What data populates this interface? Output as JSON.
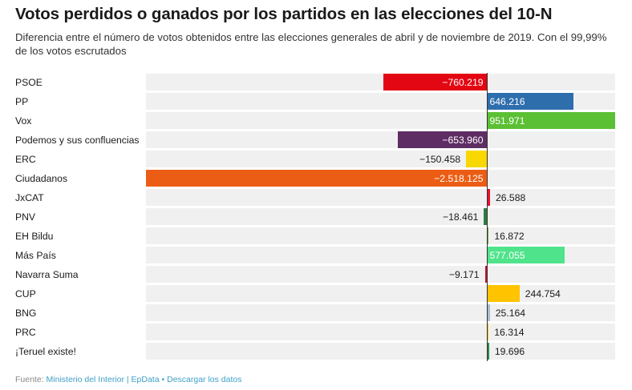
{
  "title": "Votos perdidos o ganados por los partidos en las elecciones del 10-N",
  "subtitle": "Diferencia entre el número de votos obtenidos entre las elecciones generales de abril y de noviembre de 2019. Con el 99,99% de los votos escrutados",
  "footer": {
    "source_label": "Fuente:",
    "source_link": "Ministerio del Interior | EpData",
    "separator": "•",
    "download_link": "Descargar los datos"
  },
  "chart_data": {
    "type": "bar",
    "orientation": "horizontal",
    "title": "Votos perdidos o ganados por los partidos en las elecciones del 10-N",
    "xlim": [
      -2518125,
      951971
    ],
    "categories": [
      "PSOE",
      "PP",
      "Vox",
      "Podemos y sus confluencias",
      "ERC",
      "Ciudadanos",
      "JxCAT",
      "PNV",
      "EH Bildu",
      "Más País",
      "Navarra Suma",
      "CUP",
      "BNG",
      "PRC",
      "¡Teruel existe!"
    ],
    "values": [
      -760219,
      646216,
      951971,
      -653960,
      -150458,
      -2518125,
      26588,
      -18461,
      16872,
      577055,
      -9171,
      244754,
      25164,
      16314,
      19696
    ],
    "labels": [
      "−760.219",
      "646.216",
      "951.971",
      "−653.960",
      "−150.458",
      "−2.518.125",
      "26.588",
      "−18.461",
      "16.872",
      "577.055",
      "−9.171",
      "244.754",
      "25.164",
      "16.314",
      "19.696"
    ],
    "label_inside": [
      true,
      true,
      true,
      true,
      false,
      true,
      false,
      false,
      false,
      true,
      false,
      false,
      false,
      false,
      false
    ],
    "colors": [
      "#e30613",
      "#2e6ead",
      "#5bc034",
      "#5e2d64",
      "#f8d800",
      "#eb5d14",
      "#e8112d",
      "#2f7b3e",
      "#6aa43a",
      "#4fe38b",
      "#c8102e",
      "#ffc300",
      "#a9bcd4",
      "#f6c400",
      "#2a8c4a"
    ]
  }
}
